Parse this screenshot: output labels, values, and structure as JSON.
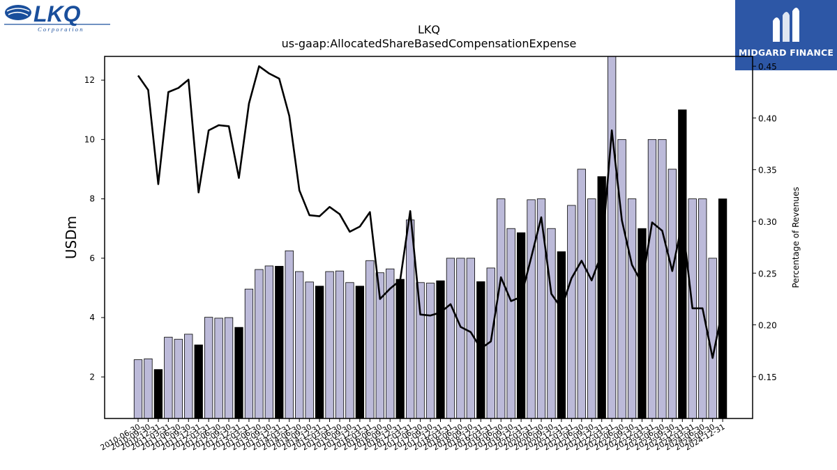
{
  "logos": {
    "lkq_text": "LKQ",
    "lkq_subtext": "Corporation",
    "midgard_text": "MIDGARD FINANCE"
  },
  "chart_data": {
    "type": "bar",
    "title": "LKQ",
    "subtitle": "us-gaap:AllocatedShareBasedCompensationExpense",
    "ylabel": "USDm",
    "y2label": "Percentage of Revenues",
    "ylim": [
      0.6,
      12.8
    ],
    "y2lim": [
      0.1095,
      0.4595
    ],
    "yticks": [
      2,
      4,
      6,
      8,
      10,
      12
    ],
    "y2ticks": [
      0.15,
      0.2,
      0.25,
      0.3,
      0.35,
      0.4,
      0.45
    ],
    "y2tick_labels": [
      "0.15",
      "0.20",
      "0.25",
      "0.30",
      "0.35",
      "0.40",
      "0.45"
    ],
    "grid": false,
    "colors": {
      "bar_quarter": "#bcbad9",
      "bar_annual": "#000000",
      "line": "#000000"
    },
    "categories": [
      "2010-06-30",
      "2010-09-30",
      "2010-12-31",
      "2011-03-31",
      "2011-06-30",
      "2011-09-30",
      "2011-12-31",
      "2012-03-31",
      "2012-06-30",
      "2012-09-30",
      "2012-12-31",
      "2013-03-31",
      "2013-06-30",
      "2013-09-30",
      "2013-12-31",
      "2014-03-31",
      "2014-06-30",
      "2014-09-30",
      "2014-12-31",
      "2015-03-31",
      "2015-06-30",
      "2015-09-30",
      "2015-12-31",
      "2016-03-31",
      "2016-06-30",
      "2016-09-30",
      "2016-12-31",
      "2017-03-31",
      "2017-06-30",
      "2017-09-30",
      "2017-12-31",
      "2018-03-31",
      "2018-06-30",
      "2018-09-30",
      "2018-12-31",
      "2019-03-31",
      "2019-06-30",
      "2019-09-30",
      "2019-12-31",
      "2020-03-31",
      "2020-06-30",
      "2020-09-30",
      "2020-12-31",
      "2021-03-31",
      "2021-06-30",
      "2021-09-30",
      "2021-12-31",
      "2022-03-31",
      "2022-06-30",
      "2022-09-30",
      "2022-12-31",
      "2023-03-31",
      "2023-06-30",
      "2023-09-30",
      "2023-12-31",
      "2024-03-31",
      "2024-06-30",
      "2024-09-30",
      "2024-12-31"
    ],
    "xtick_labels": [
      "2010-06-30",
      "2010-09-30",
      "2010-12-31",
      "2011-03-31",
      "2011-06-30",
      "2011-09-30",
      "2011-12-31",
      "2012-03-31",
      "2012-06-30",
      "2012-09-30",
      "2012-12-31",
      "2013-03-31",
      "2013-06-30",
      "2013-09-30",
      "2013-12-31",
      "2014-03-31",
      "2014-06-30",
      "2014-09-30",
      "2014-12-31",
      "2015-03-31",
      "2015-06-30",
      "2015-09-30",
      "2015-12-31",
      "2016-03-31",
      "2016-06-30",
      "2016-09-30",
      "2016-12-31",
      "2017-03-31",
      "2017-06-30",
      "2017-09-30",
      "2017-12-31",
      "2018-03-31",
      "2018-06-30",
      "2018-09-30",
      "2018-12-31",
      "2019-03-31",
      "2019-06-30",
      "2019-09-30",
      "2019-12-31",
      "2020-03-31",
      "2020-06-30",
      "2020-09-30",
      "2020-12-31",
      "2021-03-31",
      "2021-06-30",
      "2021-09-30",
      "2021-12-31",
      "2022-03-31",
      "2022-06-30",
      "2022-09-30",
      "2022-12-31",
      "2023-03-31",
      "2023-06-30",
      "2023-09-30",
      "2023-12-31",
      "2024-03-31",
      "2024-06-30",
      "2024-09-30",
      "2024-12-31"
    ],
    "annual": [
      false,
      false,
      true,
      false,
      false,
      false,
      true,
      false,
      false,
      false,
      true,
      false,
      false,
      false,
      true,
      false,
      false,
      false,
      true,
      false,
      false,
      false,
      true,
      false,
      false,
      false,
      true,
      false,
      false,
      false,
      true,
      false,
      false,
      false,
      true,
      false,
      false,
      false,
      true,
      false,
      false,
      false,
      true,
      false,
      false,
      false,
      true,
      false,
      false,
      false,
      true,
      false,
      false,
      false,
      true,
      false,
      false,
      false,
      true
    ],
    "values": [
      2.58,
      2.61,
      2.25,
      3.34,
      3.27,
      3.44,
      3.08,
      4.01,
      3.98,
      4.0,
      3.67,
      4.96,
      5.62,
      5.74,
      5.73,
      6.25,
      5.55,
      5.2,
      5.06,
      5.55,
      5.57,
      5.18,
      5.06,
      5.92,
      5.51,
      5.64,
      5.29,
      7.29,
      5.18,
      5.16,
      5.24,
      6.0,
      6.0,
      6.0,
      5.21,
      5.67,
      8.0,
      7.0,
      6.86,
      7.97,
      8.0,
      7.0,
      6.22,
      7.78,
      9.0,
      8.0,
      8.75,
      12.8,
      10.0,
      8.0,
      7.0,
      10.0,
      10.0,
      9.0,
      11.0,
      8.0,
      8.0,
      6.0,
      8.0
    ],
    "line_series": {
      "name": "Percentage of Revenues",
      "values": [
        0.441,
        0.427,
        0.336,
        0.425,
        0.429,
        0.437,
        0.328,
        0.388,
        0.393,
        0.392,
        0.342,
        0.414,
        0.45,
        0.443,
        0.438,
        0.402,
        0.33,
        0.306,
        0.305,
        0.314,
        0.307,
        0.29,
        0.295,
        0.309,
        0.225,
        0.235,
        0.243,
        0.31,
        0.21,
        0.209,
        0.212,
        0.22,
        0.198,
        0.193,
        0.177,
        0.184,
        0.246,
        0.223,
        0.227,
        0.265,
        0.304,
        0.23,
        0.216,
        0.245,
        0.262,
        0.243,
        0.269,
        0.388,
        0.301,
        0.258,
        0.24,
        0.299,
        0.291,
        0.252,
        0.3,
        0.216,
        0.216,
        0.168,
        0.216
      ]
    }
  }
}
